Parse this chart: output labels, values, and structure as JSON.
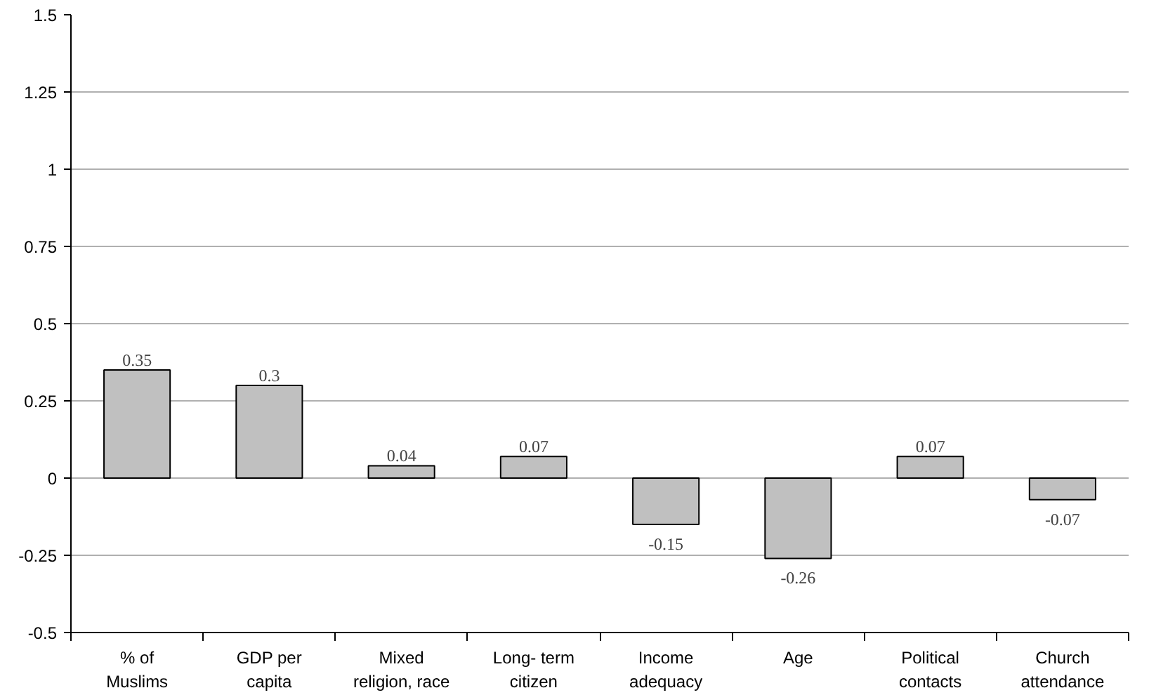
{
  "chart_data": {
    "type": "bar",
    "categories": [
      "% of\nMuslims",
      "GDP per\ncapita",
      "Mixed\nreligion, race",
      "Long- term\ncitizen",
      "Income\nadequacy",
      "Age",
      "Political\ncontacts",
      "Church\nattendance"
    ],
    "values": [
      0.35,
      0.3,
      0.04,
      0.07,
      -0.15,
      -0.26,
      0.07,
      -0.07
    ],
    "color": "#c0c0c0",
    "ylim": [
      -0.5,
      1.5
    ],
    "yticks": [
      -0.5,
      {
        "value": -0.25,
        "label": "-0.25"
      },
      0,
      0.25,
      0.5,
      0.75,
      1,
      1.25,
      1.5
    ],
    "grid": "y",
    "data_labels": true
  }
}
